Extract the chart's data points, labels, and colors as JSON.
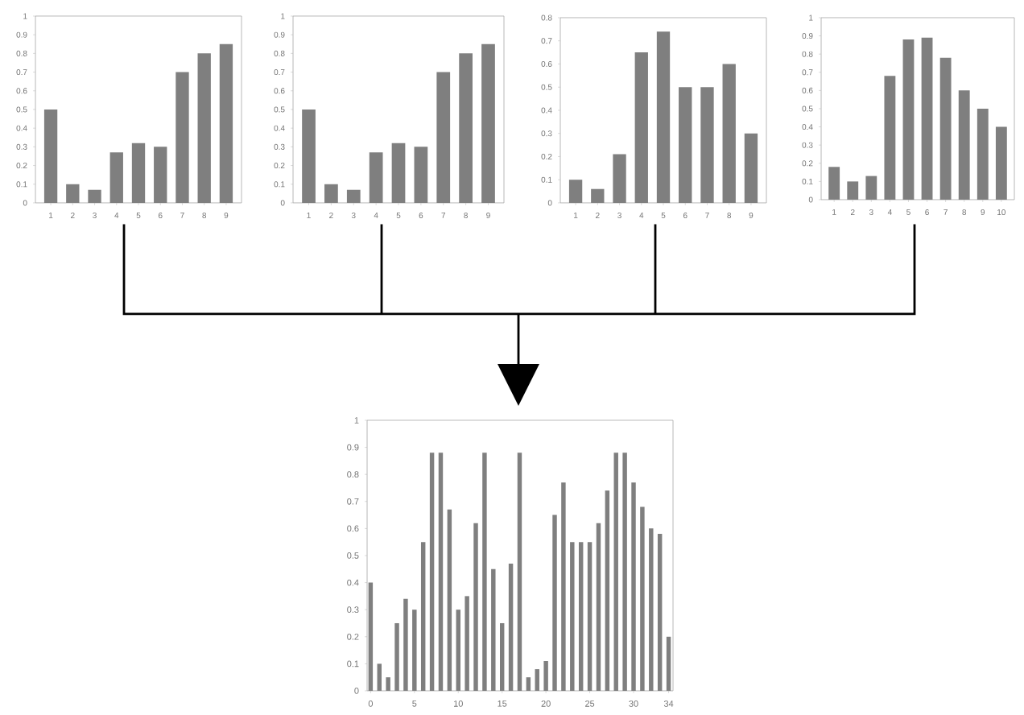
{
  "chart_data": [
    {
      "type": "bar",
      "categories": [
        "1",
        "2",
        "3",
        "4",
        "5",
        "6",
        "7",
        "8",
        "9"
      ],
      "values": [
        0.5,
        0.1,
        0.07,
        0.27,
        0.32,
        0.3,
        0.7,
        0.8,
        0.85
      ],
      "color": "#7f7f7f",
      "ylim": [
        0,
        1
      ],
      "yticks": [
        0,
        0.1,
        0.2,
        0.3,
        0.4,
        0.5,
        0.6,
        0.7,
        0.8,
        0.9,
        1
      ]
    },
    {
      "type": "bar",
      "categories": [
        "1",
        "2",
        "3",
        "4",
        "5",
        "6",
        "7",
        "8",
        "9"
      ],
      "values": [
        0.5,
        0.1,
        0.07,
        0.27,
        0.32,
        0.3,
        0.7,
        0.8,
        0.85
      ],
      "color": "#7f7f7f",
      "ylim": [
        0,
        1
      ],
      "yticks": [
        0,
        0.1,
        0.2,
        0.3,
        0.4,
        0.5,
        0.6,
        0.7,
        0.8,
        0.9,
        1
      ]
    },
    {
      "type": "bar",
      "categories": [
        "1",
        "2",
        "3",
        "4",
        "5",
        "6",
        "7",
        "8",
        "9"
      ],
      "values": [
        0.1,
        0.06,
        0.21,
        0.65,
        0.74,
        0.5,
        0.5,
        0.6,
        0.3
      ],
      "color": "#7f7f7f",
      "ylim": [
        0,
        0.8
      ],
      "yticks": [
        0,
        0.1,
        0.2,
        0.3,
        0.4,
        0.5,
        0.6,
        0.7,
        0.8
      ]
    },
    {
      "type": "bar",
      "categories": [
        "1",
        "2",
        "3",
        "4",
        "5",
        "6",
        "7",
        "8",
        "9",
        "10"
      ],
      "values": [
        0.18,
        0.1,
        0.13,
        0.68,
        0.88,
        0.89,
        0.78,
        0.6,
        0.5,
        0.4
      ],
      "color": "#7f7f7f",
      "ylim": [
        0,
        1
      ],
      "yticks": [
        0,
        0.1,
        0.2,
        0.3,
        0.4,
        0.5,
        0.6,
        0.7,
        0.8,
        0.9,
        1
      ]
    },
    {
      "type": "bar",
      "x": [
        0,
        1,
        2,
        3,
        4,
        5,
        6,
        7,
        8,
        9,
        10,
        11,
        12,
        13,
        14,
        15,
        16,
        17,
        18,
        19,
        20,
        21,
        22,
        23,
        24,
        25,
        26,
        27,
        28,
        29,
        30,
        31,
        32,
        33,
        34
      ],
      "values": [
        0.4,
        0.1,
        0.05,
        0.25,
        0.34,
        0.3,
        0.55,
        0.88,
        0.88,
        0.67,
        0.3,
        0.35,
        0.62,
        0.88,
        0.45,
        0.25,
        0.47,
        0.88,
        0.05,
        0.08,
        0.11,
        0.65,
        0.77,
        0.55,
        0.55,
        0.55,
        0.62,
        0.74,
        0.88,
        0.88,
        0.77,
        0.68,
        0.6,
        0.58,
        0.2
      ],
      "color": "#7f7f7f",
      "xlim": [
        -0.4,
        34.5
      ],
      "xticks": [
        0,
        5,
        10,
        15,
        20,
        25,
        30,
        34
      ],
      "ylim": [
        0,
        1
      ],
      "yticks": [
        0,
        0.1,
        0.2,
        0.3,
        0.4,
        0.5,
        0.6,
        0.7,
        0.8,
        0.9,
        1
      ]
    }
  ]
}
